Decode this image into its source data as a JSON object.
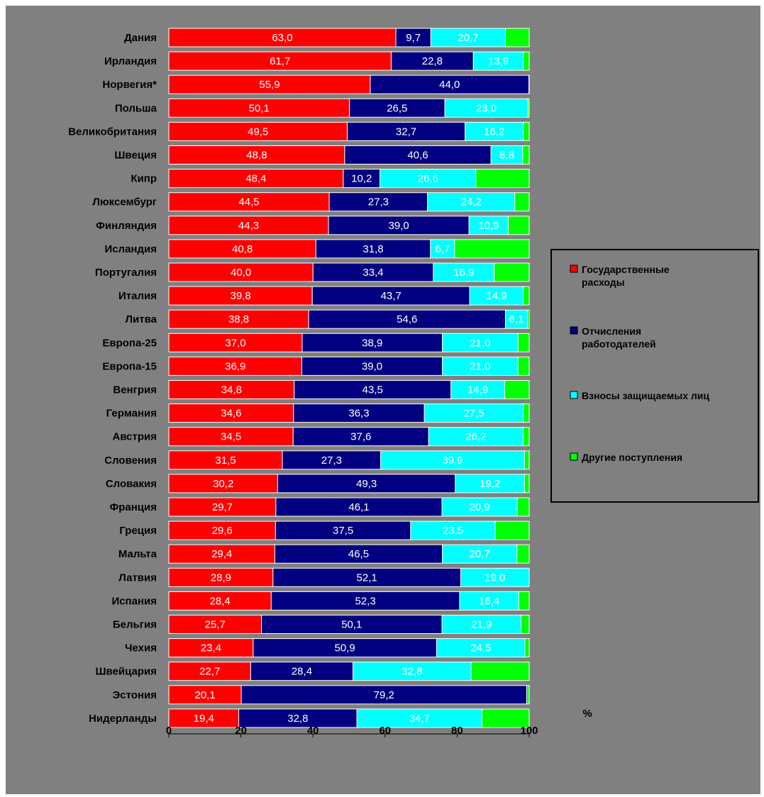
{
  "chart_data": {
    "type": "bar",
    "orientation": "horizontal",
    "stacked": true,
    "categories": [
      "Дания",
      "Ирландия",
      "Норвегия*",
      "Польша",
      "Великобритания",
      "Швеция",
      "Кипр",
      "Люксембург",
      "Финляндия",
      "Исландия",
      "Португалия",
      "Италия",
      "Литва",
      "Европа-25",
      "Европа-15",
      "Венгрия",
      "Германия",
      "Австрия",
      "Словения",
      "Словакия",
      "Франция",
      "Греция",
      "Мальта",
      "Латвия",
      "Испания",
      "Бельгия",
      "Чехия",
      "Швейцария",
      "Эстония",
      "Нидерланды"
    ],
    "series": [
      {
        "name": "Государственные расходы",
        "color": "#ff0000",
        "values": [
          63.0,
          61.7,
          55.9,
          50.1,
          49.5,
          48.8,
          48.4,
          44.5,
          44.3,
          40.8,
          40.0,
          39.8,
          38.8,
          37.0,
          36.9,
          34.8,
          34.6,
          34.5,
          31.5,
          30.2,
          29.7,
          29.6,
          29.4,
          28.9,
          28.4,
          25.7,
          23.4,
          22.7,
          20.1,
          19.4
        ],
        "labels": [
          "63,0",
          "61,7",
          "55,9",
          "50,1",
          "49,5",
          "48,8",
          "48,4",
          "44,5",
          "44,3",
          "40,8",
          "40,0",
          "39,8",
          "38,8",
          "37,0",
          "36,9",
          "34,8",
          "34,6",
          "34,5",
          "31,5",
          "30,2",
          "29,7",
          "29,6",
          "29,4",
          "28,9",
          "28,4",
          "25,7",
          "23,4",
          "22,7",
          "20,1",
          "19,4"
        ]
      },
      {
        "name": "Отчисления работодателей",
        "color": "#000080",
        "values": [
          9.7,
          22.8,
          44.0,
          26.5,
          32.7,
          40.6,
          10.2,
          27.3,
          39.0,
          31.8,
          33.4,
          43.7,
          54.6,
          38.9,
          39.0,
          43.5,
          36.3,
          37.6,
          27.3,
          49.3,
          46.1,
          37.5,
          46.5,
          52.1,
          52.3,
          50.1,
          50.9,
          28.4,
          79.2,
          32.8
        ],
        "labels": [
          "9,7",
          "22,8",
          "44,0",
          "26,5",
          "32,7",
          "40,6",
          "10,2",
          "27,3",
          "39,0",
          "31,8",
          "33,4",
          "43,7",
          "54,6",
          "38,9",
          "39,0",
          "43,5",
          "36,3",
          "37,6",
          "27,3",
          "49,3",
          "46,1",
          "37,5",
          "46,5",
          "52,1",
          "52,3",
          "50,1",
          "50,9",
          "28,4",
          "79,2",
          "32,8"
        ]
      },
      {
        "name": "Взносы защищаемых лиц",
        "color": "#00ffff",
        "values": [
          20.7,
          13.9,
          0.0,
          23.0,
          16.2,
          8.8,
          26.6,
          24.2,
          10.9,
          6.7,
          16.9,
          14.9,
          6.1,
          21.0,
          21.0,
          14.9,
          27.5,
          26.2,
          39.9,
          19.2,
          20.9,
          23.5,
          20.7,
          19.0,
          16.4,
          21.9,
          24.5,
          32.8,
          0.0,
          34.7
        ],
        "labels": [
          "20,7",
          "13,9",
          "",
          "23,0",
          "16,2",
          "8,8",
          "26,6",
          "24,2",
          "10,9",
          "6,7",
          "16,9",
          "14,9",
          "6,1",
          "21,0",
          "21,0",
          "14,9",
          "27,5",
          "26,2",
          "39,9",
          "19,2",
          "20,9",
          "23,5",
          "20,7",
          "19,0",
          "16,4",
          "21,9",
          "24,5",
          "32,8",
          "",
          "34,7"
        ]
      },
      {
        "name": "Другие поступления",
        "color": "#00ff00",
        "values": [
          6.6,
          1.6,
          0.1,
          0.4,
          1.6,
          1.8,
          14.8,
          4.0,
          5.8,
          20.7,
          9.7,
          1.6,
          0.5,
          3.1,
          3.1,
          6.8,
          1.6,
          1.7,
          1.3,
          1.3,
          3.3,
          9.4,
          3.4,
          0.0,
          2.9,
          2.3,
          1.2,
          16.1,
          0.7,
          13.1
        ],
        "labels": [
          "",
          "",
          "",
          "",
          "",
          "",
          "",
          "",
          "",
          "",
          "",
          "",
          "",
          "",
          "",
          "",
          "",
          "",
          "",
          "",
          "",
          "",
          "",
          "",
          "",
          "",
          "",
          "",
          "",
          ""
        ]
      }
    ],
    "x": {
      "ticks": [
        "0",
        "20",
        "40",
        "60",
        "80",
        "100"
      ],
      "range": [
        0,
        100
      ],
      "unit_label": "%"
    },
    "legend": {
      "position": "right",
      "items": [
        "Государственные расходы",
        "Отчисления работодателей",
        "Взносы защищаемых лиц",
        "Другие поступления"
      ]
    },
    "grid": false,
    "colors": {
      "outer_background": "#808080",
      "bar_outline": "#ffffff",
      "legend_border": "#000000"
    }
  }
}
